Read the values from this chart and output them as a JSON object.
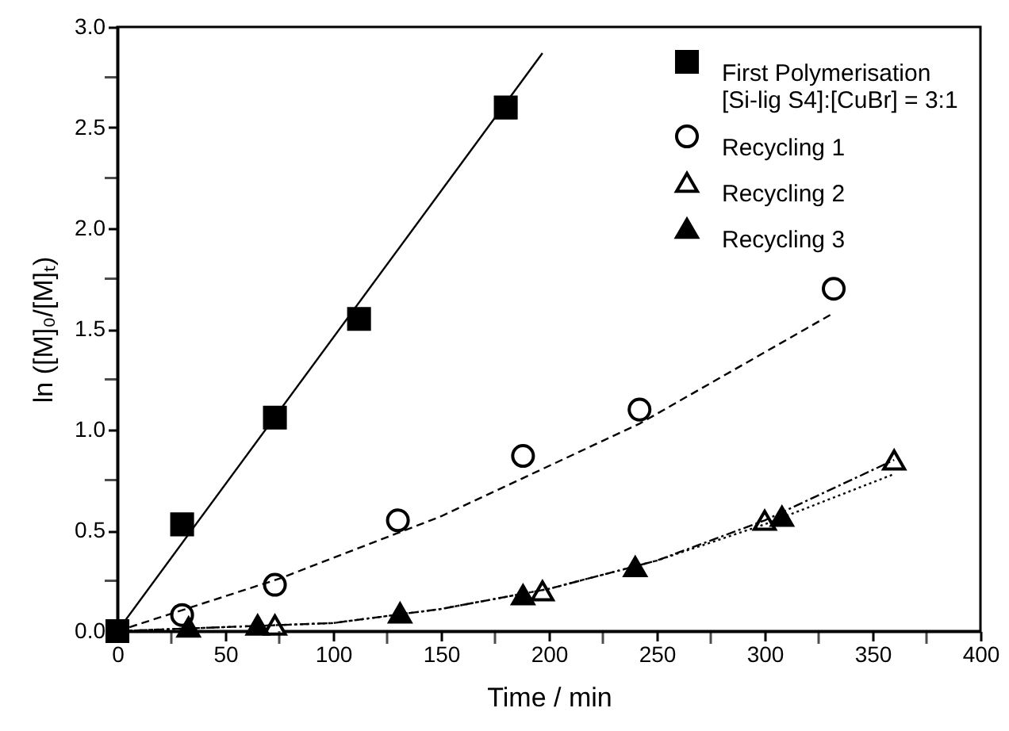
{
  "chart_data": {
    "type": "scatter",
    "xlabel": "Time / min",
    "ylabel": "ln ([M]₀/[M]ₜ)",
    "xlim": [
      0,
      400
    ],
    "ylim": [
      0,
      3.0
    ],
    "xticks": [
      {
        "value": 0,
        "label": "0"
      },
      {
        "value": 25,
        "label": null
      },
      {
        "value": 50,
        "label": "50"
      },
      {
        "value": 75,
        "label": null
      },
      {
        "value": 100,
        "label": "100"
      },
      {
        "value": 125,
        "label": null
      },
      {
        "value": 150,
        "label": "150"
      },
      {
        "value": 175,
        "label": null
      },
      {
        "value": 200,
        "label": "200"
      },
      {
        "value": 225,
        "label": null
      },
      {
        "value": 250,
        "label": "250"
      },
      {
        "value": 275,
        "label": null
      },
      {
        "value": 300,
        "label": "300"
      },
      {
        "value": 325,
        "label": null
      },
      {
        "value": 350,
        "label": "350"
      },
      {
        "value": 375,
        "label": null
      },
      {
        "value": 400,
        "label": "400"
      }
    ],
    "yticks": [
      {
        "value": 0,
        "label": "0.0"
      },
      {
        "value": 0.25,
        "label": null
      },
      {
        "value": 0.5,
        "label": "0.5"
      },
      {
        "value": 0.75,
        "label": null
      },
      {
        "value": 1,
        "label": "1.0"
      },
      {
        "value": 1.25,
        "label": null
      },
      {
        "value": 1.5,
        "label": "1.5"
      },
      {
        "value": 1.75,
        "label": null
      },
      {
        "value": 2,
        "label": "2.0"
      },
      {
        "value": 2.25,
        "label": null
      },
      {
        "value": 2.5,
        "label": "2.5"
      },
      {
        "value": 2.75,
        "label": null
      },
      {
        "value": 3,
        "label": "3.0"
      }
    ],
    "grid": false,
    "legend": "top right",
    "series": [
      {
        "name": "First Polymerisation\n[Si-lig S4]:[CuBr] = 3:1",
        "color": "#000000",
        "marker": "square",
        "x": [
          0,
          30,
          73,
          112,
          180
        ],
        "values": [
          0,
          0.53,
          1.06,
          1.55,
          2.6
        ]
      },
      {
        "name": "Recycling 1",
        "color": "#000000",
        "marker": "circle-open",
        "x": [
          30,
          73,
          130,
          188,
          242,
          332
        ],
        "values": [
          0.08,
          0.23,
          0.55,
          0.87,
          1.1,
          1.7
        ]
      },
      {
        "name": "Recycling 2",
        "color": "#000000",
        "marker": "triangle-open",
        "x": [
          73,
          197,
          300,
          360
        ],
        "values": [
          0.03,
          0.2,
          0.55,
          0.85
        ]
      },
      {
        "name": "Recycling 3",
        "color": "#000000",
        "marker": "triangle",
        "x": [
          33,
          65,
          131,
          188,
          240,
          308
        ],
        "values": [
          0.02,
          0.03,
          0.09,
          0.18,
          0.32,
          0.57
        ]
      },
      {
        "type": "line",
        "color": "#000000",
        "line_style": "solid",
        "x": [
          0,
          197
        ],
        "values": [
          0,
          2.87
        ]
      },
      {
        "type": "line",
        "color": "#000000",
        "line_style": "dashed",
        "x": [
          0,
          75,
          150,
          242,
          332
        ],
        "values": [
          0,
          0.26,
          0.57,
          1.03,
          1.58
        ]
      },
      {
        "type": "line",
        "color": "#000000",
        "line_style": "dashdot",
        "x": [
          0,
          100,
          150,
          200,
          250,
          300,
          360
        ],
        "values": [
          0,
          0.04,
          0.11,
          0.21,
          0.35,
          0.55,
          0.85
        ]
      },
      {
        "type": "line",
        "color": "#000000",
        "line_style": "dotted",
        "x": [
          0,
          100,
          150,
          200,
          250,
          300,
          360
        ],
        "values": [
          0,
          0.04,
          0.11,
          0.21,
          0.35,
          0.53,
          0.78
        ]
      }
    ]
  }
}
